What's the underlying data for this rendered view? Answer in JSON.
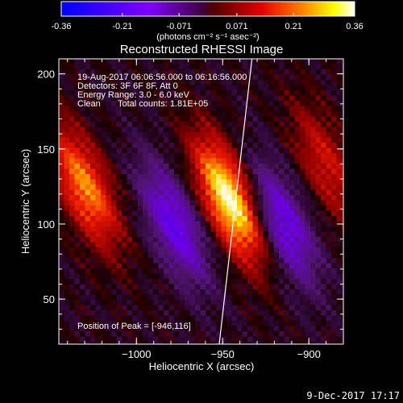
{
  "colorbar": {
    "ticks": [
      "-0.36",
      "-0.21",
      "-0.071",
      "0.071",
      "0.21",
      "0.36"
    ],
    "units": "(photons cm⁻² s⁻¹ asec⁻²)"
  },
  "chart_data": {
    "type": "heatmap",
    "title": "Reconstructed RHESSI Image",
    "xlabel": "Heliocentric X (arcsec)",
    "ylabel": "Heliocentric Y (arcsec)",
    "xlim": [
      -1045,
      -880
    ],
    "ylim": [
      20,
      210
    ],
    "x_ticks": [
      -1000,
      -950,
      -900
    ],
    "y_ticks": [
      50,
      100,
      150,
      200
    ],
    "x_tick_labels": [
      "−1000",
      "−950",
      "−900"
    ],
    "y_tick_labels": [
      "50",
      "100",
      "150",
      "200"
    ],
    "colormap": "blue-purple-red-yellow-white (RHESSI)",
    "color_range": [
      -0.36,
      0.36
    ],
    "peak_position": [
      -946,
      116
    ],
    "limb_curve": {
      "x": [
        -952,
        -948,
        -944,
        -940,
        -936,
        -933
      ],
      "y": [
        20,
        60,
        100,
        140,
        180,
        210
      ]
    },
    "structures": [
      {
        "kind": "positive",
        "center": [
          -1030,
          125
        ],
        "value": 0.25
      },
      {
        "kind": "negative",
        "center": [
          -978,
          100
        ],
        "value": -0.2
      },
      {
        "kind": "positive",
        "center": [
          -946,
          116
        ],
        "value": 0.36
      },
      {
        "kind": "negative",
        "center": [
          -915,
          100
        ],
        "value": -0.2
      },
      {
        "kind": "positive",
        "center": [
          -890,
          140
        ],
        "value": 0.14
      }
    ]
  },
  "annotations": {
    "time_range": "19-Aug-2017 06:06:56.000 to 06:16:56.000",
    "detectors": "Detectors: 3F 6F 8F, Att 0",
    "energy": "Energy Range: 3.0 - 6.0 keV",
    "method": "Clean",
    "total_counts": "Total counts: 1.81E+05",
    "peak_label": "Position of Peak = [-946,116]"
  },
  "footer": {
    "date": "9-Dec-2017 17:17"
  }
}
